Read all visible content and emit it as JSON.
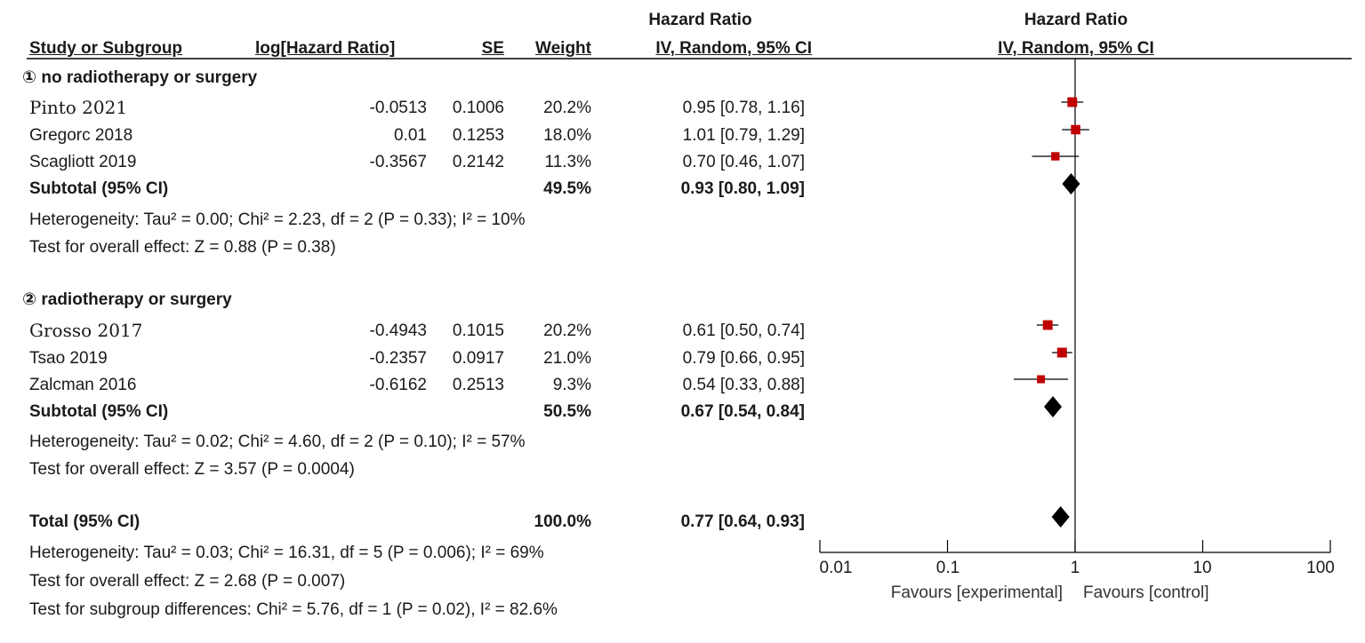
{
  "header": {
    "study_col": "Study or Subgroup",
    "loghr_col": "log[Hazard Ratio]",
    "se_col": "SE",
    "weight_col": "Weight",
    "hr_col_top": "Hazard Ratio",
    "hr_col_bottom": "IV, Random, 95% CI",
    "plot_col_top": "Hazard Ratio",
    "plot_col_bottom": "IV, Random, 95% CI"
  },
  "groups": [
    {
      "title": "① no radiotherapy or surgery",
      "studies": [
        {
          "name": "Pinto 2021",
          "loghr": "-0.0513",
          "se": "0.1006",
          "weight": "20.2%",
          "ci": "0.95 [0.78, 1.16]"
        },
        {
          "name": "Gregorc 2018",
          "loghr": "0.01",
          "se": "0.1253",
          "weight": "18.0%",
          "ci": "1.01 [0.79, 1.29]"
        },
        {
          "name": "Scagliott 2019",
          "loghr": "-0.3567",
          "se": "0.2142",
          "weight": "11.3%",
          "ci": "0.70 [0.46, 1.07]"
        }
      ],
      "subtotal_label": "Subtotal (95% CI)",
      "subtotal_weight": "49.5%",
      "subtotal_ci": "0.93 [0.80, 1.09]",
      "heterogeneity": "Heterogeneity: Tau² = 0.00; Chi² = 2.23, df = 2 (P = 0.33); I² = 10%",
      "overall": "Test for overall effect: Z = 0.88 (P = 0.38)"
    },
    {
      "title": "② radiotherapy or surgery",
      "studies": [
        {
          "name": "Grosso 2017",
          "loghr": "-0.4943",
          "se": "0.1015",
          "weight": "20.2%",
          "ci": "0.61 [0.50, 0.74]"
        },
        {
          "name": "Tsao 2019",
          "loghr": "-0.2357",
          "se": "0.0917",
          "weight": "21.0%",
          "ci": "0.79 [0.66, 0.95]"
        },
        {
          "name": "Zalcman 2016",
          "loghr": "-0.6162",
          "se": "0.2513",
          "weight": "9.3%",
          "ci": "0.54 [0.33, 0.88]"
        }
      ],
      "subtotal_label": "Subtotal (95% CI)",
      "subtotal_weight": "50.5%",
      "subtotal_ci": "0.67 [0.54, 0.84]",
      "heterogeneity": "Heterogeneity: Tau² = 0.02; Chi² = 4.60, df = 2 (P = 0.10); I² = 57%",
      "overall": "Test for overall effect: Z = 3.57 (P = 0.0004)"
    }
  ],
  "total": {
    "label": "Total (95% CI)",
    "weight": "100.0%",
    "ci": "0.77 [0.64, 0.93]",
    "heterogeneity": "Heterogeneity: Tau² = 0.03; Chi² = 16.31, df = 5 (P = 0.006); I² = 69%",
    "overall": "Test for overall effect: Z = 2.68 (P = 0.007)",
    "subgroup": "Test for subgroup differences: Chi² = 5.76, df = 1 (P = 0.02), I² = 82.6%"
  },
  "axis": {
    "ticks": [
      "0.01",
      "0.1",
      "1",
      "10",
      "100"
    ],
    "favours_left": "Favours [experimental]",
    "favours_right": "Favours [control]"
  },
  "colors": {
    "square": "#c00000",
    "diamond": "#000000",
    "line": "#000000"
  },
  "chart_data": {
    "type": "forest",
    "scale": "log",
    "xlim": [
      0.01,
      100
    ],
    "null_value": 1,
    "studies": [
      {
        "name": "Pinto 2021",
        "hr": 0.95,
        "lo": 0.78,
        "hi": 1.16,
        "weight": 20.2
      },
      {
        "name": "Gregorc 2018",
        "hr": 1.01,
        "lo": 0.79,
        "hi": 1.29,
        "weight": 18.0
      },
      {
        "name": "Scagliott 2019",
        "hr": 0.7,
        "lo": 0.46,
        "hi": 1.07,
        "weight": 11.3
      },
      {
        "name": "Grosso 2017",
        "hr": 0.61,
        "lo": 0.5,
        "hi": 0.74,
        "weight": 20.2
      },
      {
        "name": "Tsao 2019",
        "hr": 0.79,
        "lo": 0.66,
        "hi": 0.95,
        "weight": 21.0
      },
      {
        "name": "Zalcman 2016",
        "hr": 0.54,
        "lo": 0.33,
        "hi": 0.88,
        "weight": 9.3
      }
    ],
    "summaries": [
      {
        "name": "Subtotal (95% CI)",
        "hr": 0.93,
        "lo": 0.8,
        "hi": 1.09
      },
      {
        "name": "Subtotal (95% CI)",
        "hr": 0.67,
        "lo": 0.54,
        "hi": 0.84
      },
      {
        "name": "Total (95% CI)",
        "hr": 0.77,
        "lo": 0.64,
        "hi": 0.93
      }
    ]
  }
}
